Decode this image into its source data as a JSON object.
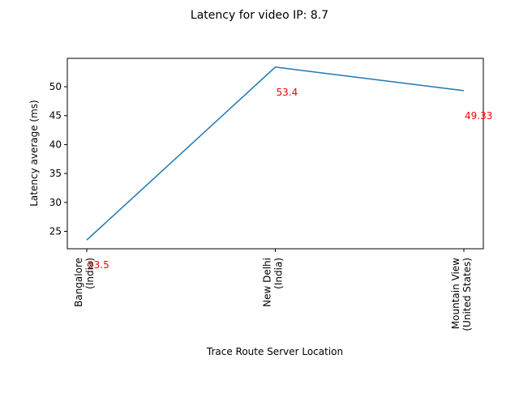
{
  "chart_data": {
    "type": "line",
    "title": "Latency for video IP: 8.7",
    "xlabel": "Trace Route Server Location",
    "ylabel": "Latency average (ms)",
    "categories": [
      [
        "Bangalore",
        "(India)"
      ],
      [
        "New Delhi",
        "(India)"
      ],
      [
        "Mountain View",
        "(United States)"
      ]
    ],
    "series": [
      {
        "values": [
          23.5,
          53.4,
          49.33
        ],
        "color": "#1f77b4"
      }
    ],
    "data_labels": [
      "23.5",
      "53.4",
      "49.33"
    ],
    "data_label_color": "#ff0000",
    "ylim": [
      21.99,
      54.91
    ],
    "yticks": [
      25,
      30,
      35,
      40,
      45,
      50
    ],
    "grid": false,
    "legend": "none"
  }
}
